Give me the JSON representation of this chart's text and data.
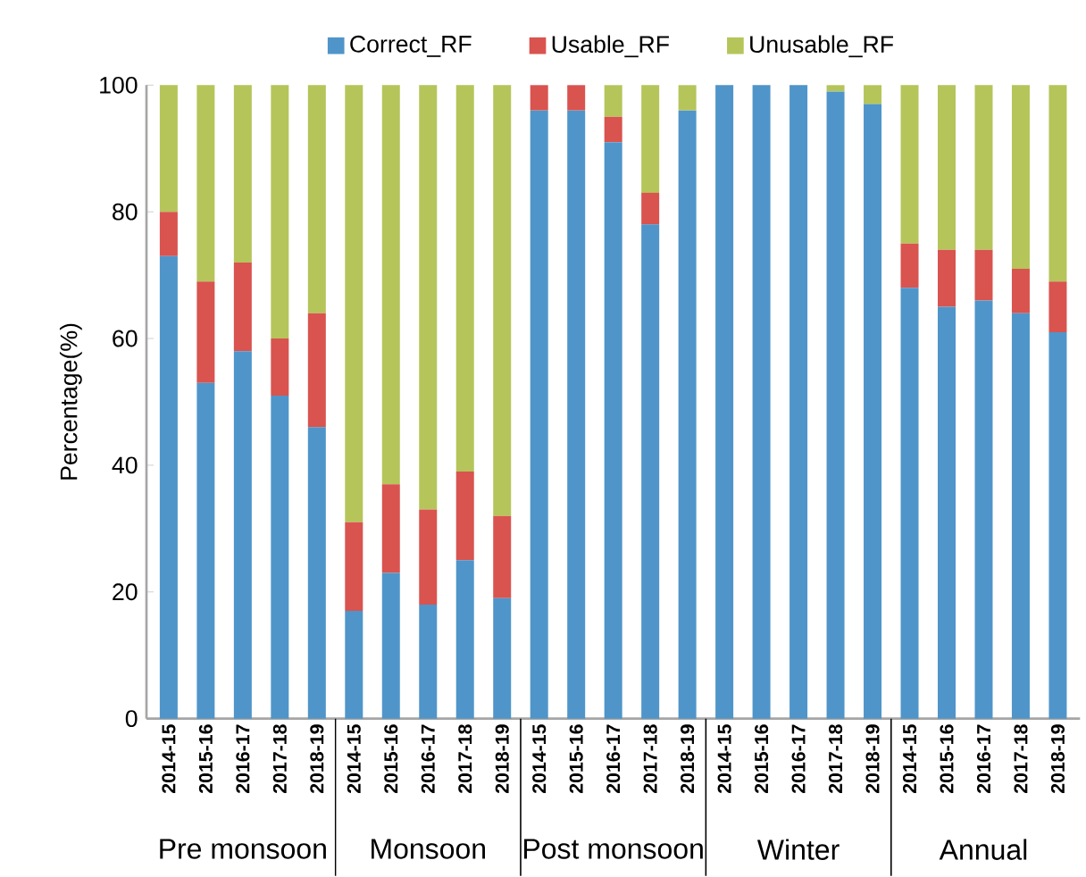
{
  "chart_data": {
    "type": "bar",
    "stacked": true,
    "ylabel": "Percentage(%)",
    "categories": [
      "2014-15",
      "2015-16",
      "2016-17",
      "2017-18",
      "2018-19",
      "2014-15",
      "2015-16",
      "2016-17",
      "2017-18",
      "2018-19",
      "2014-15",
      "2015-16",
      "2016-17",
      "2017-18",
      "2018-19",
      "2014-15",
      "2015-16",
      "2016-17",
      "2017-18",
      "2018-19",
      "2014-15",
      "2015-16",
      "2016-17",
      "2017-18",
      "2018-19"
    ],
    "series": [
      {
        "name": "Correct_RF",
        "color": "#4f95c9",
        "values": [
          73,
          53,
          58,
          51,
          46,
          17,
          23,
          18,
          25,
          19,
          96,
          96,
          91,
          78,
          96,
          100,
          100,
          100,
          99,
          97,
          68,
          65,
          66,
          64,
          61
        ]
      },
      {
        "name": "Usable_RF",
        "color": "#d9534f",
        "values": [
          7,
          16,
          14,
          9,
          18,
          14,
          14,
          15,
          14,
          13,
          4,
          4,
          4,
          5,
          0,
          0,
          0,
          0,
          0,
          0,
          7,
          9,
          8,
          7,
          8
        ]
      },
      {
        "name": "Unusable_RF",
        "color": "#b5c55a",
        "values": [
          20,
          31,
          28,
          40,
          36,
          69,
          63,
          67,
          61,
          68,
          0,
          0,
          5,
          17,
          4,
          0,
          0,
          0,
          1,
          3,
          25,
          26,
          26,
          29,
          31
        ]
      }
    ],
    "annotations": [
      "Pre monsoon",
      "Monsoon",
      "Post monsoon",
      "Winter",
      "Annual"
    ],
    "ylim": [
      0,
      100
    ],
    "yticks": [
      0,
      20,
      40,
      60,
      80,
      100
    ],
    "grid": false,
    "legend": "top"
  }
}
